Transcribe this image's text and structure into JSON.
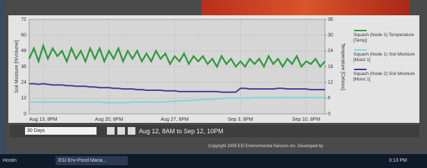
{
  "chart_data": {
    "type": "line",
    "y_label": "Soil Moisture [%Volume]",
    "y2_label": "Temperature [Celsius]",
    "categories": [
      null,
      null,
      null,
      "Aug 13, 8PM",
      null,
      null,
      null,
      null,
      null,
      null,
      null,
      null,
      null,
      null,
      null,
      null,
      null,
      "Aug 20, 8PM",
      null,
      null,
      null,
      null,
      null,
      null,
      null,
      null,
      null,
      null,
      null,
      null,
      null,
      "Aug 27, 8PM",
      null,
      null,
      null,
      null,
      null,
      null,
      null,
      null,
      null,
      null,
      null,
      null,
      null,
      "Sep 3, 8PM",
      null,
      null,
      null,
      null,
      null,
      null,
      null,
      null,
      null,
      null,
      null,
      null,
      null,
      "Sep 10, 8PM",
      null,
      null,
      null,
      null
    ],
    "ylim": [
      0,
      72
    ],
    "yticks": [
      0,
      12,
      24,
      36,
      48,
      60,
      72
    ],
    "y2lim": [
      0,
      36
    ],
    "y2ticks": [
      0,
      6,
      12,
      18,
      24,
      30,
      36
    ],
    "grid": true,
    "series": [
      {
        "name": "Squash (Node 2) Temperature [Temp]",
        "color": "#2e9a3c",
        "axis": "y2",
        "values": [
          21,
          25,
          20,
          26,
          21,
          25,
          22,
          24,
          20,
          25,
          21,
          24,
          20,
          25,
          21,
          25,
          20,
          24,
          21,
          25,
          20,
          24,
          21,
          24,
          20,
          23,
          20,
          24,
          21,
          23,
          19,
          22,
          20,
          23,
          19,
          22,
          20,
          22,
          19,
          21,
          18,
          22,
          19,
          21,
          18,
          20,
          18,
          21,
          19,
          21,
          18,
          22,
          19,
          21,
          18,
          21,
          19,
          22,
          18,
          20,
          19,
          21,
          18,
          20
        ]
      },
      {
        "name": "Squash (Node 1) Soil Moisture [Moist 1]",
        "color": "#7fd6dc",
        "values": [
          9,
          9,
          9,
          9,
          9,
          9,
          9,
          9,
          9,
          9,
          9,
          9,
          9,
          9,
          9,
          9,
          8.5,
          8.5,
          8.5,
          8.5,
          8.5,
          8.5,
          9,
          9,
          9,
          9,
          9,
          9,
          9,
          9,
          9.5,
          9.5,
          10,
          10,
          10,
          10.5,
          10.5,
          11,
          11,
          11,
          11.5,
          11.5,
          12,
          12,
          12,
          12,
          12,
          12,
          12.5,
          12.5,
          12.5,
          12.5,
          12.5,
          12.5,
          12.5,
          12.5,
          12.5,
          12.5,
          12.5,
          12.5,
          12.5,
          12.5,
          12.5,
          12.5
        ]
      },
      {
        "name": "Squash (Node 2) Soil Moisture [Moist 1]",
        "color": "#3a3a9c",
        "values": [
          23,
          23,
          22.5,
          23,
          22.5,
          22,
          22,
          22,
          21.5,
          21.5,
          21,
          21,
          21,
          20.5,
          20.5,
          20,
          20,
          20,
          19.5,
          19.5,
          19,
          19,
          19,
          18.5,
          18.5,
          18,
          18,
          18,
          18,
          17.5,
          17.5,
          17.5,
          17,
          17,
          17,
          17,
          17,
          17,
          17,
          17,
          17,
          16.5,
          16.5,
          16.5,
          16.5,
          19.5,
          19.5,
          19,
          19,
          19,
          19,
          19,
          19,
          19.5,
          19.5,
          19,
          19,
          19,
          19,
          19,
          18.5,
          18.5,
          18.5,
          18.5
        ]
      }
    ]
  },
  "controls": {
    "period": "30 Days",
    "range": "Aug 12, 8AM to Sep 12, 10PM"
  },
  "footer": {
    "copyright": "Copyright 2009 ESI Environmental Sensors Inc. Developed by"
  },
  "taskbar": {
    "start": "Hostin",
    "window": "ESI Env-Pond Mana...",
    "clock": "3:13 PM"
  }
}
